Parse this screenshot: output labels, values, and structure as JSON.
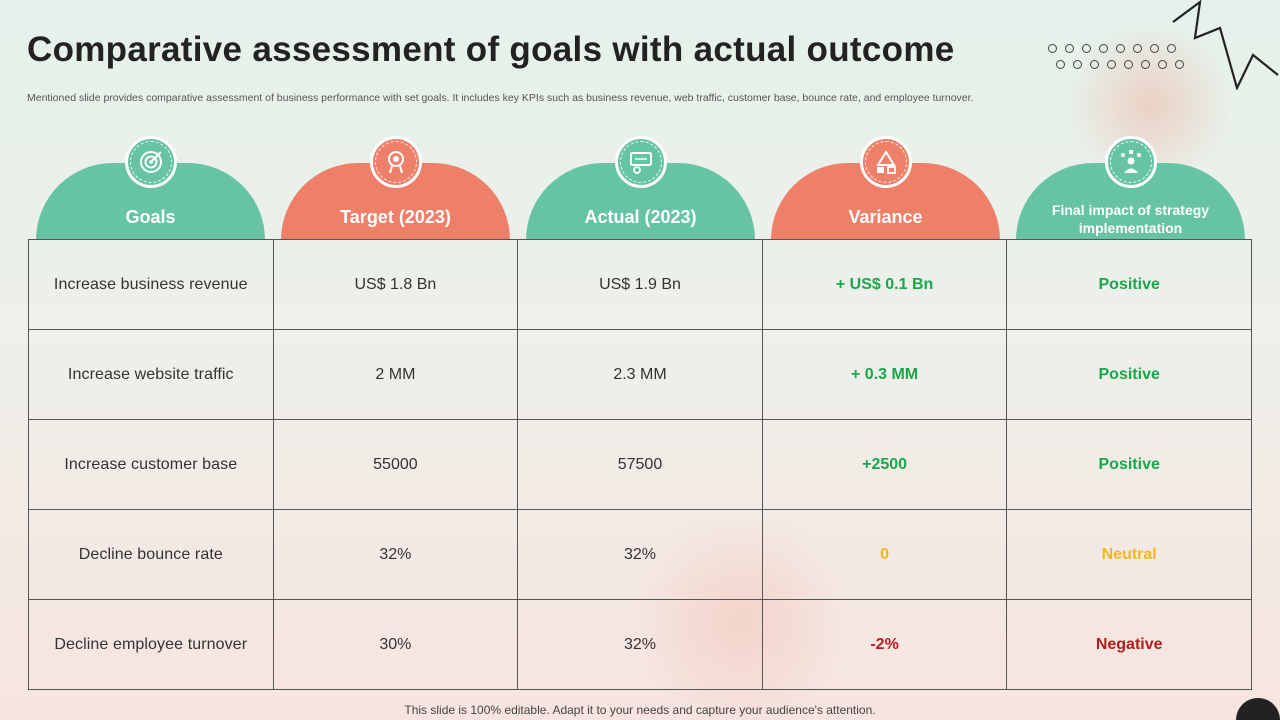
{
  "slide": {
    "title": "Comparative assessment of goals with actual outcome",
    "subtitle": "Mentioned slide provides comparative assessment of business performance with set goals. It includes key KPIs such as business revenue, web traffic,  customer base, bounce rate, and employee turnover.",
    "footer": "This slide is 100% editable. Adapt it to your needs and capture your audience's attention."
  },
  "colors": {
    "green": "#66c4a5",
    "coral": "#ee7f68",
    "positive": "#1aa64b",
    "neutral": "#f2b81c",
    "negative": "#b31d1d"
  },
  "columns": [
    {
      "label": "Goals",
      "icon": "target-icon",
      "color": "green"
    },
    {
      "label": "Target (2023)",
      "icon": "goal-brain-icon",
      "color": "coral"
    },
    {
      "label": "Actual (2023)",
      "icon": "actual-board-icon",
      "color": "green"
    },
    {
      "label": "Variance",
      "icon": "shapes-icon",
      "color": "coral"
    },
    {
      "label": "Final impact of strategy  implementation",
      "icon": "strategy-person-icon",
      "color": "green"
    }
  ],
  "rows": [
    {
      "goal": "Increase  business revenue",
      "target": "US$ 1.8 Bn",
      "actual": "US$ 1.9 Bn",
      "variance": "+ US$ 0.1 Bn",
      "impact": "Positive",
      "status": "positive"
    },
    {
      "goal": "Increase  website traffic",
      "target": "2 MM",
      "actual": "2.3 MM",
      "variance": "+ 0.3 MM",
      "impact": "Positive",
      "status": "positive"
    },
    {
      "goal": "Increase  customer base",
      "target": "55000",
      "actual": "57500",
      "variance": "+2500",
      "impact": "Positive",
      "status": "positive"
    },
    {
      "goal": "Decline bounce rate",
      "target": "32%",
      "actual": "32%",
      "variance": "0",
      "impact": "Neutral",
      "status": "neutral"
    },
    {
      "goal": "Decline employee turnover",
      "target": "30%",
      "actual": "32%",
      "variance": "-2%",
      "impact": "Negative",
      "status": "negative"
    }
  ]
}
